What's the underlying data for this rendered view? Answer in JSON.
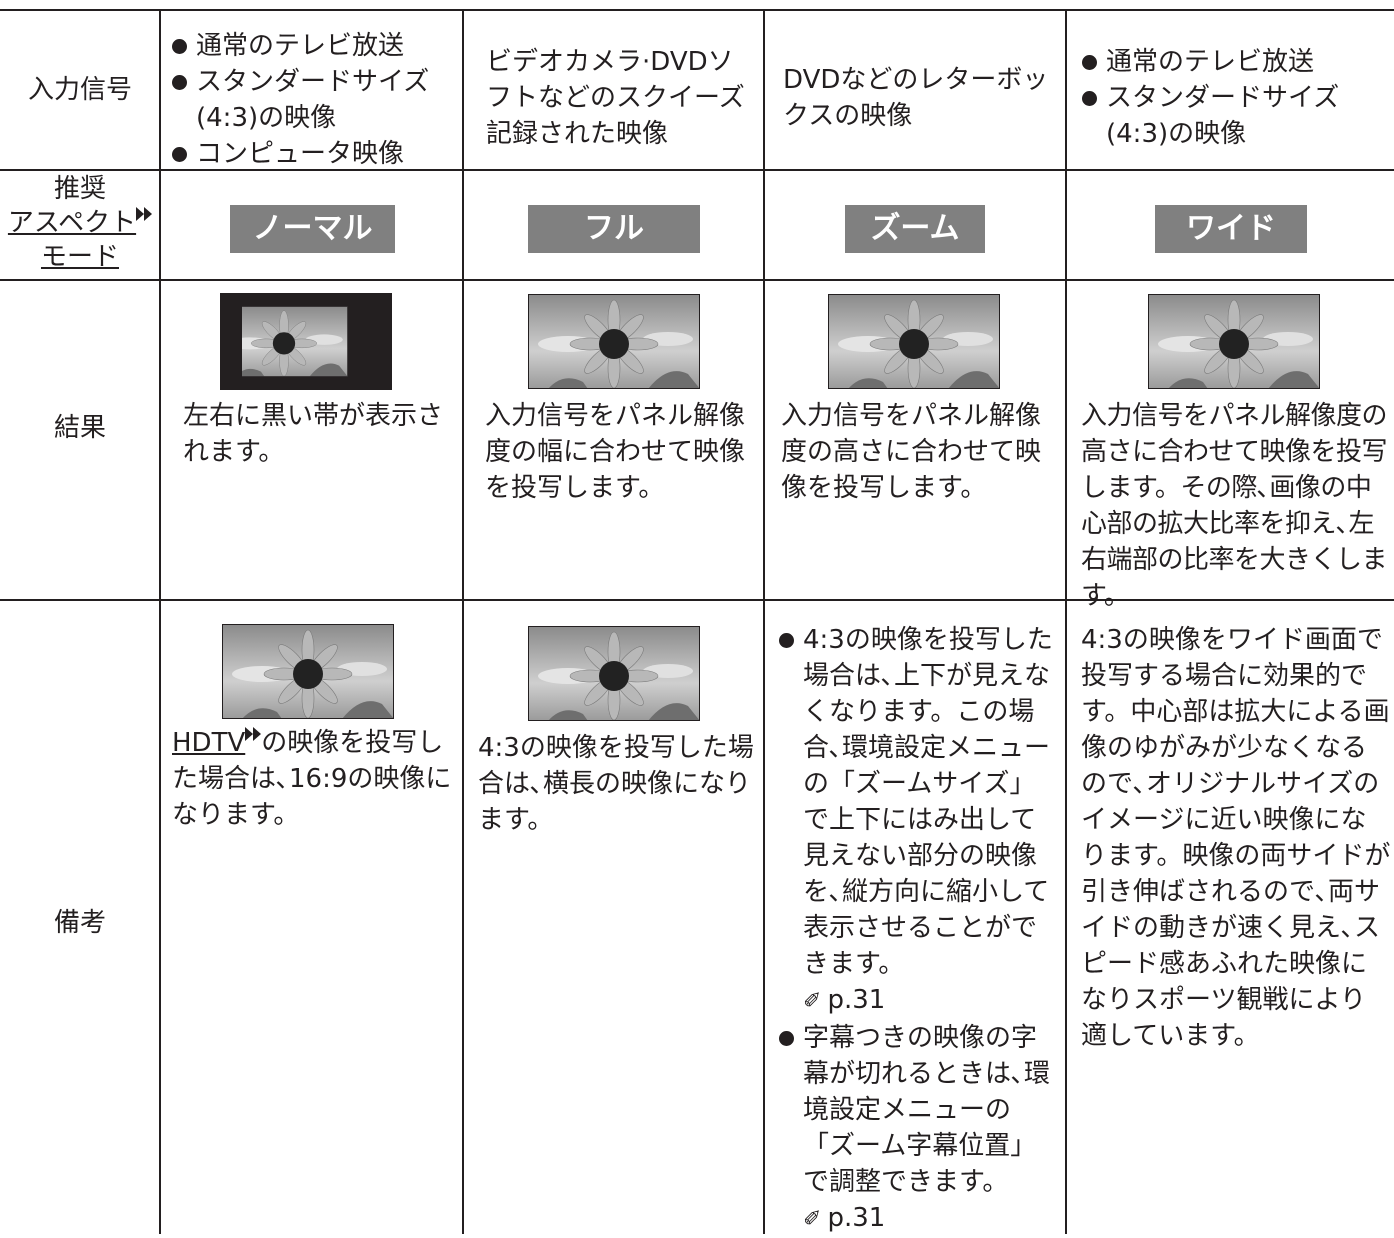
{
  "table": {
    "row_headers": {
      "input": "入力信号",
      "mode_1": "推奨",
      "mode_2": "アスペクト",
      "mode_3": "モード",
      "result": "結果",
      "notes": "備考"
    },
    "input": [
      [
        "通常のテレビ放送",
        "スタンダードサイズ(4:3)の映像",
        "コンピュータ映像"
      ],
      "ビデオカメラ·DVDソフトなどのスクイーズ記録された映像",
      "DVDなどのレターボックスの映像",
      [
        "通常のテレビ放送",
        "スタンダードサイズ(4:3)の映像"
      ]
    ],
    "modes": [
      "ノーマル",
      "フル",
      "ズーム",
      "ワイド"
    ],
    "results": [
      "左右に黒い帯が表示されます。",
      "入力信号をパネル解像度の幅に合わせて映像を投写します。",
      "入力信号をパネル解像度の高さに合わせて映像を投写します。",
      "入力信号をパネル解像度の高さに合わせて映像を投写します。その際､画像の中心部の拡大比率を抑え､左右端部の比率を大きくします。"
    ],
    "notes": {
      "col1_link": "HDTV",
      "col1_text": "の映像を投写した場合は､16:9の映像になります。",
      "col2": "4:3の映像を投写した場合は､横長の映像になります。",
      "col3": [
        {
          "text": "4:3の映像を投写した場合は､上下が見えなくなります。この場合､環境設定メニューの「ズームサイズ」で上下にはみ出して見えない部分の映像を､縦方向に縮小して表示させることができます。",
          "ref": "p.31"
        },
        {
          "text": "字幕つきの映像の字幕が切れるときは､環境設定メニューの「ズーム字幕位置」で調整できます。",
          "ref": "p.31"
        }
      ],
      "col4": "4:3の映像をワイド画面で投写する場合に効果的です。中心部は拡大による画像のゆがみが少なくなるので､オリジナルサイズのイメージに近い映像になります。映像の両サイドが引き伸ばされるので､両サイドの動きが速く見え､スピード感あふれた映像になりスポーツ観戦により適しています。"
    }
  }
}
